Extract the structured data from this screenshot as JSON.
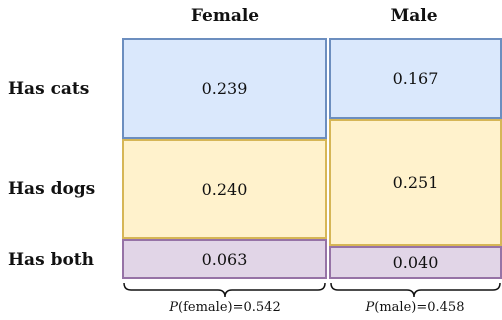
{
  "columns": {
    "female": "Female",
    "male": "Male"
  },
  "rows": {
    "cats": "Has cats",
    "dogs": "Has dogs",
    "both": "Has both"
  },
  "values": {
    "female": {
      "cats": "0.239",
      "dogs": "0.240",
      "both": "0.063"
    },
    "male": {
      "cats": "0.167",
      "dogs": "0.251",
      "both": "0.040"
    }
  },
  "marginals": {
    "female": {
      "label": "P",
      "text": "(female)=0.542"
    },
    "male": {
      "label": "P",
      "text": "(male)=0.458"
    }
  },
  "colors": {
    "cats_fill": "#dae8fc",
    "cats_border": "#6c8ebf",
    "dogs_fill": "#fff2cc",
    "dogs_border": "#d6b656",
    "both_fill": "#e1d5e7",
    "both_border": "#9673a6"
  }
}
